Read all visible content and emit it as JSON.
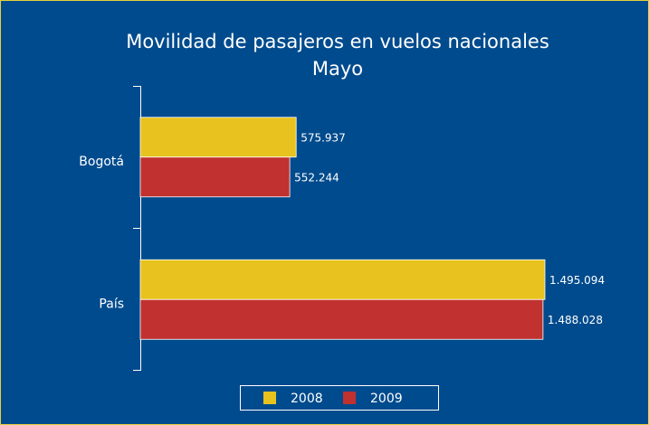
{
  "chart_data": {
    "type": "bar",
    "orientation": "horizontal",
    "title": "Movilidad de pasajeros en vuelos nacionales",
    "subtitle": "Mayo",
    "categories": [
      "Bogotá",
      "País"
    ],
    "series": [
      {
        "name": "2008",
        "color": "#e8c21e",
        "values": [
          575937,
          1495094
        ],
        "value_labels": [
          "575.937",
          "1.495.094"
        ]
      },
      {
        "name": "2009",
        "color": "#c0312f",
        "values": [
          552244,
          1488028
        ],
        "value_labels": [
          "552.244",
          "1.488.028"
        ]
      }
    ],
    "legend": "bottom"
  }
}
